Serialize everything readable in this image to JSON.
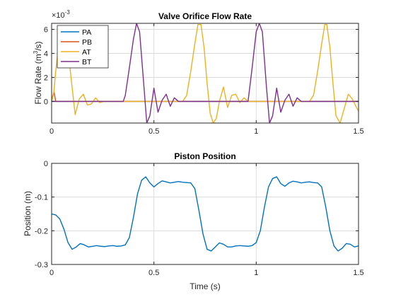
{
  "chart_data": [
    {
      "type": "line",
      "title": "Valve Orifice Flow Rate",
      "xlabel": "",
      "ylabel": "Flow Rate (m³/s)",
      "ylabel_base": "Flow Rate (m",
      "ylabel_sup": "3",
      "ylabel_end": "/s)",
      "exponent_label": "×10",
      "exponent_value": "-3",
      "xlim": [
        0,
        1.5
      ],
      "ylim": [
        -0.0018,
        0.0065
      ],
      "xticks": [
        0,
        0.5,
        1,
        1.5
      ],
      "xtick_labels": [
        "0",
        "0.5",
        "1",
        "1.5"
      ],
      "yticks": [
        0,
        0.002,
        0.004,
        0.006
      ],
      "ytick_labels": [
        "0",
        "2",
        "4",
        "6"
      ],
      "grid": true,
      "legend": "top-left",
      "series": [
        {
          "name": "PA",
          "color": "#0072BD",
          "x": [
            0,
            1.5
          ],
          "y": [
            0,
            0
          ]
        },
        {
          "name": "PB",
          "color": "#D95319",
          "x": [
            0,
            0.005,
            0.012,
            0.02,
            1.5
          ],
          "y": [
            0,
            0.0004,
            0.0008,
            0,
            0
          ]
        },
        {
          "name": "AT",
          "color": "#EDB120",
          "x": [
            0,
            0.01,
            0.02,
            0.035,
            0.05,
            0.065,
            0.08,
            0.1,
            0.115,
            0.135,
            0.155,
            0.175,
            0.195,
            0.215,
            0.235,
            0.255,
            0.275,
            0.3,
            0.35,
            0.4,
            0.45,
            0.5,
            0.55,
            0.6,
            0.64,
            0.66,
            0.68,
            0.7,
            0.715,
            0.73,
            0.745,
            0.76,
            0.775,
            0.79,
            0.805,
            0.82,
            0.84,
            0.86,
            0.88,
            0.9,
            0.92,
            0.94,
            0.96,
            0.98,
            1.0,
            1.05,
            1.1,
            1.15,
            1.2,
            1.24,
            1.26,
            1.28,
            1.3,
            1.32,
            1.335,
            1.345,
            1.36,
            1.375,
            1.39,
            1.41,
            1.43,
            1.45,
            1.47,
            1.49,
            1.5
          ],
          "y": [
            0,
            0.0006,
            0.0025,
            0.0048,
            0.006,
            0.0058,
            0.0043,
            0.0012,
            -0.0011,
            0.0002,
            0.0006,
            -0.0003,
            -0.0002,
            0.0003,
            -0.0001,
            0,
            0,
            0,
            0,
            0,
            0,
            0,
            0,
            0,
            0,
            0.0005,
            0.0025,
            0.0048,
            0.0064,
            0.0064,
            0.0045,
            0.0015,
            -0.001,
            -0.0018,
            -0.0014,
            0,
            0.0012,
            -0.0005,
            0.0005,
            0.0006,
            -0.0001,
            0.0003,
            0,
            0,
            0,
            0,
            0,
            0,
            0,
            0,
            0,
            0.0005,
            0.0025,
            0.0048,
            0.0064,
            0.0064,
            0.0045,
            0.0015,
            -0.0012,
            -0.0018,
            -0.0006,
            0.0006,
            0.0002,
            -0.0005,
            -0.0008
          ]
        },
        {
          "name": "BT",
          "color": "#7E2F8E",
          "x": [
            0,
            0.3,
            0.35,
            0.36,
            0.38,
            0.4,
            0.415,
            0.43,
            0.45,
            0.465,
            0.48,
            0.5,
            0.52,
            0.54,
            0.56,
            0.58,
            0.6,
            0.62,
            0.64,
            0.7,
            0.8,
            0.9,
            0.96,
            0.98,
            1.0,
            1.015,
            1.03,
            1.05,
            1.065,
            1.08,
            1.1,
            1.12,
            1.14,
            1.16,
            1.18,
            1.2,
            1.22,
            1.25,
            1.3,
            1.4,
            1.5
          ],
          "y": [
            0,
            0,
            0,
            0.0005,
            0.0028,
            0.0052,
            0.0065,
            0.0058,
            0.0015,
            -0.0018,
            -0.0012,
            0.0011,
            -0.0009,
            0.0001,
            0.0006,
            -0.0004,
            0.0003,
            0,
            0,
            0,
            0,
            0,
            0,
            0.0028,
            0.0058,
            0.0065,
            0.0058,
            0.0012,
            -0.0018,
            -0.0012,
            0.0011,
            -0.0009,
            0.0001,
            0.0006,
            -0.0004,
            0.0003,
            0,
            0,
            0,
            0,
            0
          ]
        }
      ]
    },
    {
      "type": "line",
      "title": "Piston Position",
      "xlabel": "Time (s)",
      "ylabel": "Position (m)",
      "xlim": [
        0,
        1.5
      ],
      "ylim": [
        -0.3,
        0
      ],
      "xticks": [
        0,
        0.5,
        1,
        1.5
      ],
      "xtick_labels": [
        "0",
        "0.5",
        "1",
        "1.5"
      ],
      "yticks": [
        -0.3,
        -0.2,
        -0.1,
        0
      ],
      "ytick_labels": [
        "-0.3",
        "-0.2",
        "-0.1",
        "0"
      ],
      "grid": true,
      "series": [
        {
          "color": "#0072BD",
          "x": [
            0,
            0.02,
            0.04,
            0.06,
            0.08,
            0.1,
            0.12,
            0.14,
            0.16,
            0.18,
            0.2,
            0.22,
            0.24,
            0.26,
            0.28,
            0.3,
            0.32,
            0.34,
            0.36,
            0.38,
            0.4,
            0.42,
            0.44,
            0.46,
            0.48,
            0.5,
            0.52,
            0.54,
            0.56,
            0.58,
            0.6,
            0.62,
            0.64,
            0.66,
            0.68,
            0.7,
            0.72,
            0.74,
            0.76,
            0.78,
            0.8,
            0.82,
            0.84,
            0.86,
            0.88,
            0.9,
            0.92,
            0.94,
            0.96,
            0.98,
            1.0,
            1.02,
            1.04,
            1.06,
            1.08,
            1.1,
            1.12,
            1.14,
            1.16,
            1.18,
            1.2,
            1.22,
            1.24,
            1.26,
            1.28,
            1.3,
            1.32,
            1.34,
            1.36,
            1.38,
            1.4,
            1.42,
            1.44,
            1.46,
            1.48,
            1.5
          ],
          "y": [
            -0.15,
            -0.153,
            -0.165,
            -0.195,
            -0.235,
            -0.255,
            -0.248,
            -0.238,
            -0.242,
            -0.248,
            -0.246,
            -0.244,
            -0.246,
            -0.247,
            -0.245,
            -0.244,
            -0.246,
            -0.245,
            -0.242,
            -0.22,
            -0.16,
            -0.09,
            -0.05,
            -0.04,
            -0.058,
            -0.07,
            -0.06,
            -0.052,
            -0.055,
            -0.058,
            -0.056,
            -0.054,
            -0.056,
            -0.057,
            -0.058,
            -0.075,
            -0.14,
            -0.21,
            -0.255,
            -0.26,
            -0.248,
            -0.236,
            -0.24,
            -0.248,
            -0.248,
            -0.245,
            -0.244,
            -0.245,
            -0.246,
            -0.244,
            -0.235,
            -0.2,
            -0.13,
            -0.07,
            -0.045,
            -0.04,
            -0.06,
            -0.068,
            -0.058,
            -0.053,
            -0.055,
            -0.058,
            -0.056,
            -0.055,
            -0.057,
            -0.058,
            -0.07,
            -0.13,
            -0.2,
            -0.245,
            -0.26,
            -0.252,
            -0.238,
            -0.24,
            -0.248,
            -0.245
          ]
        }
      ]
    }
  ]
}
